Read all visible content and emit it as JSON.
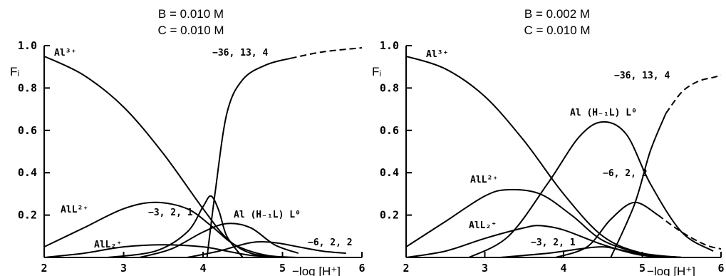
{
  "chart_data": [
    {
      "type": "line",
      "title_lines": [
        "B = 0.010 M",
        "C = 0.010 M"
      ],
      "xlabel": "−log [H⁺]",
      "ylabel": "Fᵢ",
      "xlim": [
        2,
        6
      ],
      "ylim": [
        0,
        1.0
      ],
      "x_ticks": [
        "2",
        "3",
        "4",
        "5",
        "6"
      ],
      "y_ticks": [
        "0.2",
        "0.4",
        "0.6",
        "0.8",
        "1.0"
      ],
      "series": [
        {
          "name": "Al³⁺",
          "x": [
            2,
            2.5,
            3,
            3.5,
            4,
            4.3,
            4.6,
            5
          ],
          "y": [
            0.95,
            0.86,
            0.71,
            0.49,
            0.23,
            0.09,
            0.02,
            0.0
          ]
        },
        {
          "name": "AlL²⁺",
          "x": [
            2,
            2.5,
            3,
            3.4,
            3.8,
            4.1,
            4.4,
            4.8,
            5.2
          ],
          "y": [
            0.05,
            0.14,
            0.23,
            0.26,
            0.23,
            0.15,
            0.06,
            0.01,
            0.0
          ]
        },
        {
          "name": "AlL₂⁺",
          "x": [
            2,
            2.5,
            3,
            3.5,
            4,
            4.3,
            4.6,
            5
          ],
          "y": [
            0.0,
            0.02,
            0.05,
            0.06,
            0.05,
            0.03,
            0.01,
            0.0
          ]
        },
        {
          "name": "−3, 2, 1",
          "x": [
            2.8,
            3.4,
            3.8,
            4.0,
            4.1,
            4.2,
            4.3,
            4.5
          ],
          "y": [
            0.0,
            0.03,
            0.12,
            0.24,
            0.29,
            0.22,
            0.1,
            0.0
          ]
        },
        {
          "name": "Al (H₋₁L) L⁰",
          "x": [
            3.2,
            3.6,
            4.0,
            4.3,
            4.6,
            4.9,
            5.2
          ],
          "y": [
            0.0,
            0.04,
            0.12,
            0.16,
            0.14,
            0.06,
            0.02
          ]
        },
        {
          "name": "−6, 2, 2",
          "x": [
            3.8,
            4.2,
            4.6,
            4.9,
            5.2,
            5.5,
            5.8
          ],
          "y": [
            0.0,
            0.03,
            0.07,
            0.07,
            0.05,
            0.03,
            0.02
          ]
        },
        {
          "name": "−36, 13, 4",
          "x": [
            4.05,
            4.15,
            4.3,
            4.5,
            4.8,
            5.1,
            5.5,
            6.0
          ],
          "y": [
            0.0,
            0.3,
            0.68,
            0.84,
            0.91,
            0.94,
            0.97,
            0.99
          ],
          "dashed_from_x": 5.2
        }
      ]
    },
    {
      "type": "line",
      "title_lines": [
        "B = 0.002 M",
        "C = 0.010 M"
      ],
      "xlabel": "−log [H⁺]",
      "ylabel": "Fᵢ",
      "xlim": [
        2,
        6
      ],
      "ylim": [
        0,
        1.0
      ],
      "x_ticks": [
        "2",
        "3",
        "4",
        "5",
        "6"
      ],
      "y_ticks": [
        "0.2",
        "0.4",
        "0.6",
        "0.8",
        "1.0"
      ],
      "series": [
        {
          "name": "Al³⁺",
          "x": [
            2,
            2.5,
            3,
            3.5,
            4,
            4.5,
            5,
            5.5
          ],
          "y": [
            0.95,
            0.89,
            0.76,
            0.55,
            0.3,
            0.1,
            0.02,
            0.0
          ]
        },
        {
          "name": "AlL²⁺",
          "x": [
            2,
            2.5,
            3,
            3.3,
            3.7,
            4.1,
            4.5,
            5,
            5.5
          ],
          "y": [
            0.05,
            0.17,
            0.29,
            0.32,
            0.3,
            0.2,
            0.08,
            0.02,
            0.0
          ]
        },
        {
          "name": "AlL₂⁺",
          "x": [
            2,
            2.5,
            3,
            3.5,
            3.7,
            4,
            4.5,
            5,
            5.5
          ],
          "y": [
            0.0,
            0.03,
            0.09,
            0.14,
            0.15,
            0.13,
            0.06,
            0.01,
            0.0
          ]
        },
        {
          "name": "−3, 2, 1",
          "x": [
            3.2,
            3.8,
            4.2,
            4.5,
            4.8,
            5.2
          ],
          "y": [
            0.0,
            0.02,
            0.04,
            0.05,
            0.03,
            0.0
          ]
        },
        {
          "name": "Al (H₋₁L) L⁰",
          "x": [
            2.8,
            3.3,
            3.8,
            4.2,
            4.5,
            4.8,
            5.1,
            5.5,
            5.9
          ],
          "y": [
            0.0,
            0.1,
            0.35,
            0.57,
            0.64,
            0.58,
            0.35,
            0.12,
            0.03
          ]
        },
        {
          "name": "−6, 2, 2",
          "x": [
            3.9,
            4.3,
            4.6,
            4.9,
            5.2,
            5.5,
            5.8,
            6.0
          ],
          "y": [
            0.0,
            0.05,
            0.18,
            0.26,
            0.2,
            0.12,
            0.06,
            0.04
          ],
          "dashed_from_x": 5.4
        },
        {
          "name": "−36, 13, 4",
          "x": [
            4.6,
            4.9,
            5.1,
            5.3,
            5.5,
            5.7,
            5.9,
            6.0
          ],
          "y": [
            0.0,
            0.25,
            0.5,
            0.68,
            0.78,
            0.83,
            0.85,
            0.86
          ],
          "dashed_from_x": 5.4
        }
      ]
    }
  ],
  "labels": {
    "left": {
      "al3": "Al³⁺",
      "all2": "AlL²⁺",
      "all2plus": "AlL₂⁺",
      "s321": "−3, 2, 1",
      "alhl": "Al (H₋₁L) L⁰",
      "s622": "−6, 2, 2",
      "s36134": "−36, 13, 4"
    },
    "right": {
      "al3": "Al³⁺",
      "all2": "AlL²⁺",
      "all2plus": "AlL₂⁺",
      "s321": "−3, 2, 1",
      "alhl": "Al (H₋₁L) L⁰",
      "s622": "−6, 2, 2",
      "s36134": "−36, 13, 4"
    }
  }
}
